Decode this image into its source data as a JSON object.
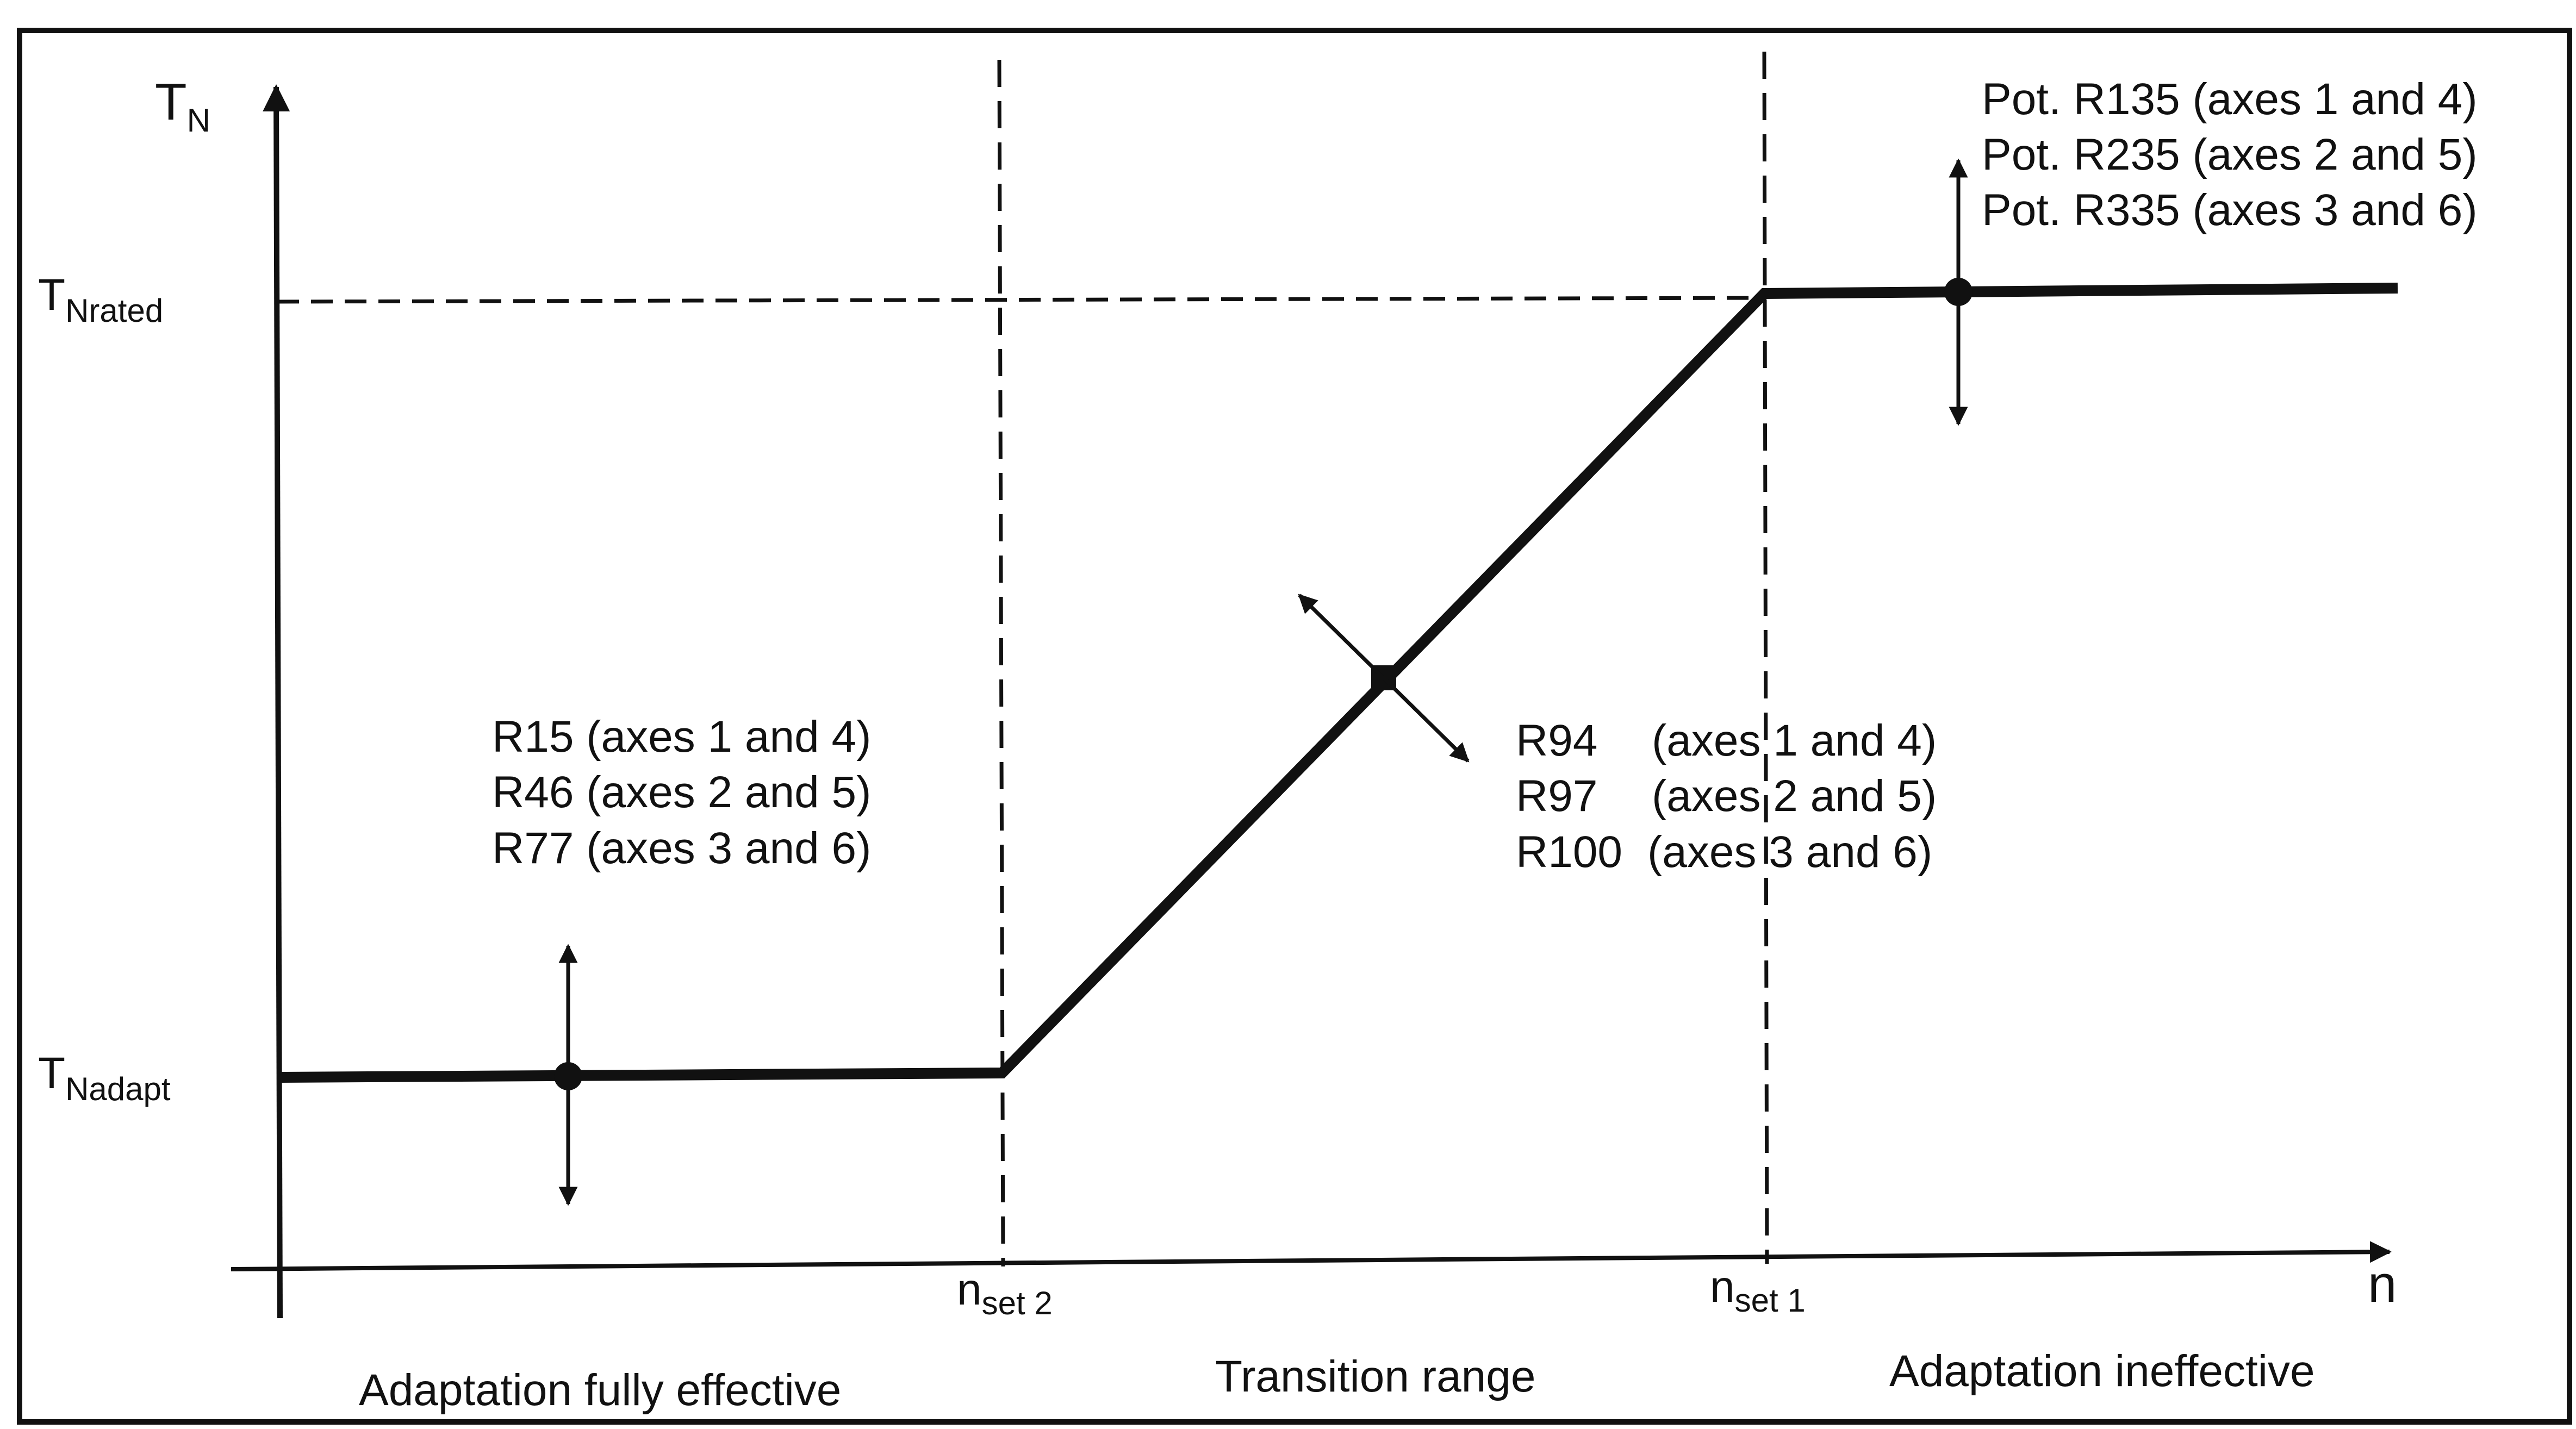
{
  "diagram": {
    "y_axis": {
      "symbol": "T",
      "subscript": "N"
    },
    "x_axis": {
      "symbol": "n"
    },
    "y_levels": {
      "rated": {
        "symbol": "T",
        "subscript": "Nrated"
      },
      "adapt": {
        "symbol": "T",
        "subscript": "Nadapt"
      }
    },
    "x_marks": {
      "set2": {
        "symbol": "n",
        "subscript": "set 2"
      },
      "set1": {
        "symbol": "n",
        "subscript": "set 1"
      }
    },
    "adjusters": {
      "low_level": [
        "R15 (axes 1 and 4)",
        "R46 (axes 2 and 5)",
        "R77 (axes 3 and 6)"
      ],
      "transition_slope": [
        "R94",
        "(axes 1 and 4)",
        "R97",
        "(axes 2 and 5)",
        "R100",
        "(axes 3 and 6)"
      ],
      "rated_level": [
        "Pot. R135 (axes 1 and 4)",
        "Pot. R235 (axes 2 and 5)",
        "Pot. R335 (axes 3 and 6)"
      ]
    },
    "regions": [
      "Adaptation fully effective",
      "Transition range",
      "Adaptation ineffective"
    ]
  },
  "colors": {
    "ink": "#111111",
    "background": "#ffffff"
  }
}
